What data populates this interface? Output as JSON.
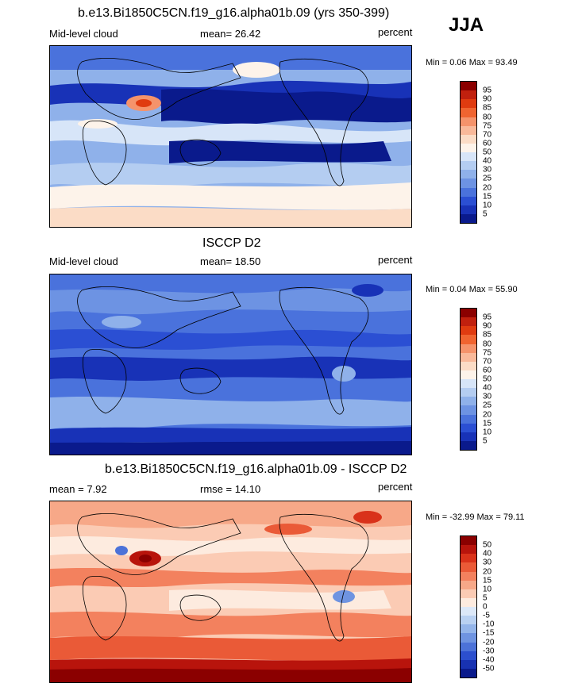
{
  "season": "JJA",
  "panels": [
    {
      "title": "b.e13.Bi1850C5CN.f19_g16.alpha01b.09 (yrs 350-399)",
      "left": "Mid-level cloud",
      "center": "mean=  26.42",
      "right": "percent",
      "minmax": "Min =   0.06 Max =  93.49",
      "levels": [
        "95",
        "90",
        "85",
        "80",
        "75",
        "70",
        "60",
        "50",
        "40",
        "30",
        "25",
        "20",
        "15",
        "10",
        "5"
      ],
      "colors": [
        "#8b0000",
        "#c1200e",
        "#e03b10",
        "#f06430",
        "#f5936b",
        "#f9b99a",
        "#fbdcc6",
        "#fdf3ea",
        "#d7e5f8",
        "#b4cdf1",
        "#8fb1ea",
        "#6d93e3",
        "#4a72dc",
        "#2b4fd3",
        "#1832b7",
        "#0a1a8c"
      ]
    },
    {
      "title": "ISCCP D2",
      "left": "Mid-level cloud",
      "center": "mean=  18.50",
      "right": "percent",
      "minmax": "Min =   0.04 Max =  55.90",
      "levels": [
        "95",
        "90",
        "85",
        "80",
        "75",
        "70",
        "60",
        "50",
        "40",
        "30",
        "25",
        "20",
        "15",
        "10",
        "5"
      ],
      "colors": [
        "#8b0000",
        "#c1200e",
        "#e03b10",
        "#f06430",
        "#f5936b",
        "#f9b99a",
        "#fbdcc6",
        "#fdf3ea",
        "#d7e5f8",
        "#b4cdf1",
        "#8fb1ea",
        "#6d93e3",
        "#4a72dc",
        "#2b4fd3",
        "#1832b7",
        "#0a1a8c"
      ]
    },
    {
      "title": "b.e13.Bi1850C5CN.f19_g16.alpha01b.09 - ISCCP D2",
      "left": "mean =   7.92",
      "center": "rmse =  14.10",
      "right": "percent",
      "minmax": "Min = -32.99 Max =  79.11",
      "levels": [
        "50",
        "40",
        "30",
        "20",
        "15",
        "10",
        "5",
        "0",
        "-5",
        "-10",
        "-15",
        "-20",
        "-30",
        "-40",
        "-50"
      ],
      "colors": [
        "#8b0000",
        "#b8140c",
        "#d9321a",
        "#ea5a37",
        "#f3815e",
        "#f7a888",
        "#fbcbb4",
        "#fdebdf",
        "#dce8f8",
        "#b9d1f2",
        "#94b5ea",
        "#6f94e1",
        "#4c72d8",
        "#2c4fce",
        "#1832b2",
        "#0a1a8c"
      ]
    }
  ]
}
